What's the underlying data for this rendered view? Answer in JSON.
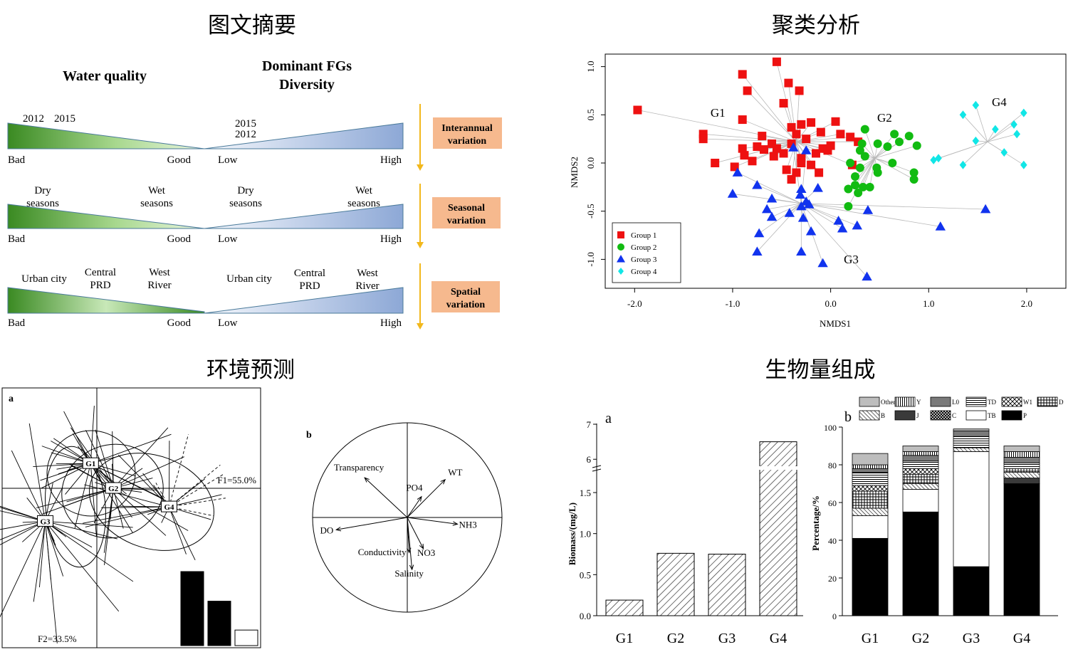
{
  "panel_titles": {
    "abstract": "图文摘要",
    "cluster": "聚类分析",
    "env": "环境预测",
    "biomass": "生物量组成"
  },
  "abstract": {
    "left_header": "Water quality",
    "right_header_line1": "Dominant FGs",
    "right_header_line2": "Diversity",
    "rows": [
      {
        "left_labels": [
          "2012",
          "2015"
        ],
        "right_labels": [
          "2015",
          "2012"
        ],
        "left_ends": [
          "Bad",
          "Good"
        ],
        "right_ends": [
          "Low",
          "High"
        ],
        "box_line1": "Interannual",
        "box_line2": "variation"
      },
      {
        "left_labels": [
          "Dry",
          "seasons",
          "Wet",
          "seasons"
        ],
        "right_labels": [
          "Dry",
          "seasons",
          "Wet",
          "seasons"
        ],
        "left_ends": [
          "Bad",
          "Good"
        ],
        "right_ends": [
          "Low",
          "High"
        ],
        "box_line1": "Seasonal",
        "box_line2": "variation"
      },
      {
        "left_labels": [
          "Urban city",
          "Central",
          "PRD",
          "West",
          "River"
        ],
        "right_labels": [
          "Urban city",
          "Central",
          "PRD",
          "West",
          "River"
        ],
        "left_ends": [
          "Bad",
          "Good"
        ],
        "right_ends": [
          "Low",
          "High"
        ],
        "box_line1": "Spatial",
        "box_line2": "variation"
      }
    ],
    "colors": {
      "green": "#3a8a22",
      "blue": "#7a98cc",
      "box": "#f6b98e",
      "arrow": "#f2b81c"
    }
  },
  "chart_data": [
    {
      "type": "scatter",
      "xlabel": "NMDS1",
      "ylabel": "NMDS2",
      "xlim": [
        -2.3,
        2.4
      ],
      "ylim": [
        -1.3,
        1.13
      ],
      "xticks": [
        "-2.0",
        "-1.0",
        "0.0",
        "1.0",
        "2.0"
      ],
      "xtick_values": [
        -2.0,
        -1.0,
        0.0,
        1.0,
        2.0
      ],
      "yticks": [
        "1.0",
        "0.5",
        "0.0",
        "-0.5",
        "-1.0"
      ],
      "ytick_values": [
        1.0,
        0.5,
        0.0,
        -0.5,
        -1.0
      ],
      "legend_position": "bottom-left",
      "group_labels": [
        {
          "text": "G1",
          "x": -1.15,
          "y": 0.48
        },
        {
          "text": "G2",
          "x": 0.55,
          "y": 0.43
        },
        {
          "text": "G3",
          "x": 0.21,
          "y": -1.04
        },
        {
          "text": "G4",
          "x": 1.72,
          "y": 0.59
        }
      ],
      "series": [
        {
          "name": "Group 1",
          "marker": "square",
          "color": "#ee1111",
          "centroid": [
            -0.35,
            0.22
          ],
          "points": [
            [
              -1.97,
              0.55
            ],
            [
              -0.55,
              1.05
            ],
            [
              -0.9,
              0.92
            ],
            [
              -0.43,
              0.83
            ],
            [
              -0.85,
              0.75
            ],
            [
              -0.32,
              0.75
            ],
            [
              -0.48,
              0.62
            ],
            [
              -0.9,
              0.45
            ],
            [
              -0.3,
              0.4
            ],
            [
              -0.4,
              0.37
            ],
            [
              -0.2,
              0.42
            ],
            [
              0.05,
              0.43
            ],
            [
              -1.3,
              0.3
            ],
            [
              -0.9,
              0.15
            ],
            [
              -0.7,
              0.28
            ],
            [
              -0.35,
              0.3
            ],
            [
              -0.1,
              0.32
            ],
            [
              0.2,
              0.27
            ],
            [
              0.28,
              0.22
            ],
            [
              -1.3,
              0.25
            ],
            [
              -0.6,
              0.2
            ],
            [
              -0.75,
              0.17
            ],
            [
              -0.4,
              0.2
            ],
            [
              -0.25,
              0.25
            ],
            [
              -0.55,
              0.15
            ],
            [
              -0.08,
              0.15
            ],
            [
              -0.15,
              0.1
            ],
            [
              -0.88,
              0.08
            ],
            [
              -0.68,
              0.14
            ],
            [
              -0.48,
              0.1
            ],
            [
              -0.3,
              0.05
            ],
            [
              -1.18,
              0.0
            ],
            [
              -0.8,
              0.02
            ],
            [
              -0.58,
              0.07
            ],
            [
              -0.2,
              -0.02
            ],
            [
              -0.45,
              -0.07
            ],
            [
              -0.35,
              -0.1
            ],
            [
              -0.12,
              -0.1
            ],
            [
              0.22,
              -0.02
            ],
            [
              -0.4,
              -0.17
            ],
            [
              -0.98,
              -0.04
            ],
            [
              -0.03,
              0.13
            ],
            [
              0.1,
              0.3
            ],
            [
              0.0,
              0.18
            ],
            [
              -0.3,
              0.0
            ]
          ]
        },
        {
          "name": "Group 2",
          "marker": "circle",
          "color": "#11bb11",
          "centroid": [
            0.45,
            0.05
          ],
          "points": [
            [
              0.35,
              0.35
            ],
            [
              0.48,
              0.2
            ],
            [
              0.8,
              0.28
            ],
            [
              0.65,
              0.3
            ],
            [
              0.7,
              0.22
            ],
            [
              0.32,
              0.2
            ],
            [
              0.58,
              0.17
            ],
            [
              0.88,
              0.18
            ],
            [
              0.3,
              0.13
            ],
            [
              0.35,
              0.07
            ],
            [
              0.2,
              0.0
            ],
            [
              0.3,
              -0.05
            ],
            [
              0.47,
              -0.05
            ],
            [
              0.48,
              -0.1
            ],
            [
              0.63,
              0.0
            ],
            [
              0.85,
              -0.1
            ],
            [
              0.25,
              -0.14
            ],
            [
              0.85,
              -0.17
            ],
            [
              0.18,
              -0.27
            ],
            [
              0.25,
              -0.23
            ],
            [
              0.33,
              -0.25
            ],
            [
              0.4,
              -0.25
            ],
            [
              0.28,
              -0.31
            ],
            [
              0.18,
              -0.45
            ]
          ]
        },
        {
          "name": "Group 3",
          "marker": "triangle",
          "color": "#1133ee",
          "centroid": [
            -0.3,
            -0.42
          ],
          "points": [
            [
              -0.38,
              0.16
            ],
            [
              -0.25,
              0.13
            ],
            [
              -0.95,
              -0.1
            ],
            [
              -1.0,
              -0.32
            ],
            [
              -0.75,
              -0.23
            ],
            [
              -0.6,
              -0.37
            ],
            [
              -0.3,
              -0.27
            ],
            [
              -0.13,
              -0.26
            ],
            [
              -0.31,
              -0.33
            ],
            [
              -0.25,
              -0.4
            ],
            [
              -0.3,
              -0.45
            ],
            [
              -0.22,
              -0.43
            ],
            [
              -0.65,
              -0.48
            ],
            [
              -0.6,
              -0.56
            ],
            [
              -0.42,
              -0.52
            ],
            [
              -0.28,
              -0.57
            ],
            [
              0.08,
              -0.6
            ],
            [
              0.38,
              -0.49
            ],
            [
              0.12,
              -0.68
            ],
            [
              0.27,
              -0.65
            ],
            [
              -0.73,
              -0.73
            ],
            [
              -0.2,
              -0.71
            ],
            [
              -0.75,
              -0.92
            ],
            [
              -0.3,
              -0.92
            ],
            [
              -0.08,
              -1.04
            ],
            [
              0.37,
              -1.18
            ],
            [
              1.12,
              -0.66
            ],
            [
              1.58,
              -0.48
            ]
          ]
        },
        {
          "name": "Group 4",
          "marker": "diamond",
          "color": "#11e6e6",
          "centroid": [
            1.6,
            0.22
          ],
          "points": [
            [
              1.48,
              0.6
            ],
            [
              1.35,
              0.5
            ],
            [
              1.97,
              0.52
            ],
            [
              1.87,
              0.4
            ],
            [
              1.68,
              0.35
            ],
            [
              1.48,
              0.23
            ],
            [
              1.9,
              0.3
            ],
            [
              1.1,
              0.05
            ],
            [
              1.05,
              0.03
            ],
            [
              1.35,
              -0.02
            ],
            [
              1.77,
              0.11
            ],
            [
              1.97,
              -0.02
            ]
          ]
        }
      ]
    },
    {
      "type": "bar",
      "panel_label": "a",
      "ylabel": "Biomass/(mg/L)",
      "categories": [
        "G1",
        "G2",
        "G3",
        "G4"
      ],
      "values": [
        0.19,
        0.76,
        0.75,
        6.5
      ],
      "axis_break": [
        1.5,
        5.7
      ],
      "lower_ylim": [
        0,
        1.5
      ],
      "upper_ylim": [
        5.7,
        7
      ],
      "lower_ticks": [
        "0.0",
        "0.5",
        "1.0",
        "1.5"
      ],
      "lower_tick_values": [
        0,
        0.5,
        1.0,
        1.5
      ],
      "upper_ticks": [
        "6",
        "7"
      ],
      "upper_tick_values": [
        6,
        7
      ]
    },
    {
      "type": "bar",
      "stacked": true,
      "panel_label": "b",
      "ylabel": "Percentage/%",
      "categories": [
        "G1",
        "G2",
        "G3",
        "G4"
      ],
      "ylim": [
        0,
        100
      ],
      "yticks": [
        "0",
        "20",
        "40",
        "60",
        "80",
        "100"
      ],
      "ytick_values": [
        0,
        20,
        40,
        60,
        80,
        100
      ],
      "legend_position": "top",
      "series": [
        {
          "name": "P",
          "values": [
            41,
            55,
            26,
            70
          ]
        },
        {
          "name": "TB",
          "values": [
            12,
            12,
            61,
            0
          ]
        },
        {
          "name": "C",
          "values": [
            0,
            0,
            0,
            0
          ]
        },
        {
          "name": "J",
          "values": [
            0,
            0,
            0,
            3
          ]
        },
        {
          "name": "B",
          "values": [
            4,
            3,
            2,
            3
          ]
        },
        {
          "name": "D",
          "values": [
            9,
            5,
            0,
            2
          ]
        },
        {
          "name": "W1",
          "values": [
            3,
            3,
            0,
            0
          ]
        },
        {
          "name": "TD",
          "values": [
            7,
            4,
            6,
            3
          ]
        },
        {
          "name": "L0",
          "values": [
            2,
            3,
            3,
            3
          ]
        },
        {
          "name": "Y",
          "values": [
            2,
            2,
            0,
            3
          ]
        },
        {
          "name": "Others",
          "values": [
            6,
            3,
            1,
            3
          ]
        }
      ],
      "legend_order": [
        "Others",
        "Y",
        "L0",
        "TD",
        "W1",
        "D",
        "B",
        "J",
        "C",
        "TB",
        "P"
      ]
    },
    {
      "type": "scatter",
      "panel_label": "a",
      "x_axis_label": "F1=55.0%",
      "y_axis_label": "F2=33.5%",
      "groups": [
        {
          "name": "G1",
          "center": [
            -0.03,
            0.12
          ]
        },
        {
          "name": "G2",
          "center": [
            0.08,
            0.0
          ]
        },
        {
          "name": "G3",
          "center": [
            -0.25,
            -0.16
          ]
        },
        {
          "name": "G4",
          "center": [
            0.35,
            -0.09
          ]
        }
      ],
      "eigenvalues": [
        1.0,
        0.6,
        0.21
      ]
    },
    {
      "type": "scatter",
      "panel_label": "b",
      "vectors": [
        {
          "name": "Transparency",
          "x": -0.45,
          "y": 0.42
        },
        {
          "name": "WT",
          "x": 0.4,
          "y": 0.4
        },
        {
          "name": "PO4",
          "x": 0.15,
          "y": 0.22
        },
        {
          "name": "DO",
          "x": -0.75,
          "y": -0.13
        },
        {
          "name": "NH3",
          "x": 0.53,
          "y": -0.07
        },
        {
          "name": "Conductivity",
          "x": 0.02,
          "y": -0.37
        },
        {
          "name": "NO3",
          "x": 0.17,
          "y": -0.33
        },
        {
          "name": "Salinity",
          "x": 0.05,
          "y": -0.55
        }
      ]
    }
  ]
}
